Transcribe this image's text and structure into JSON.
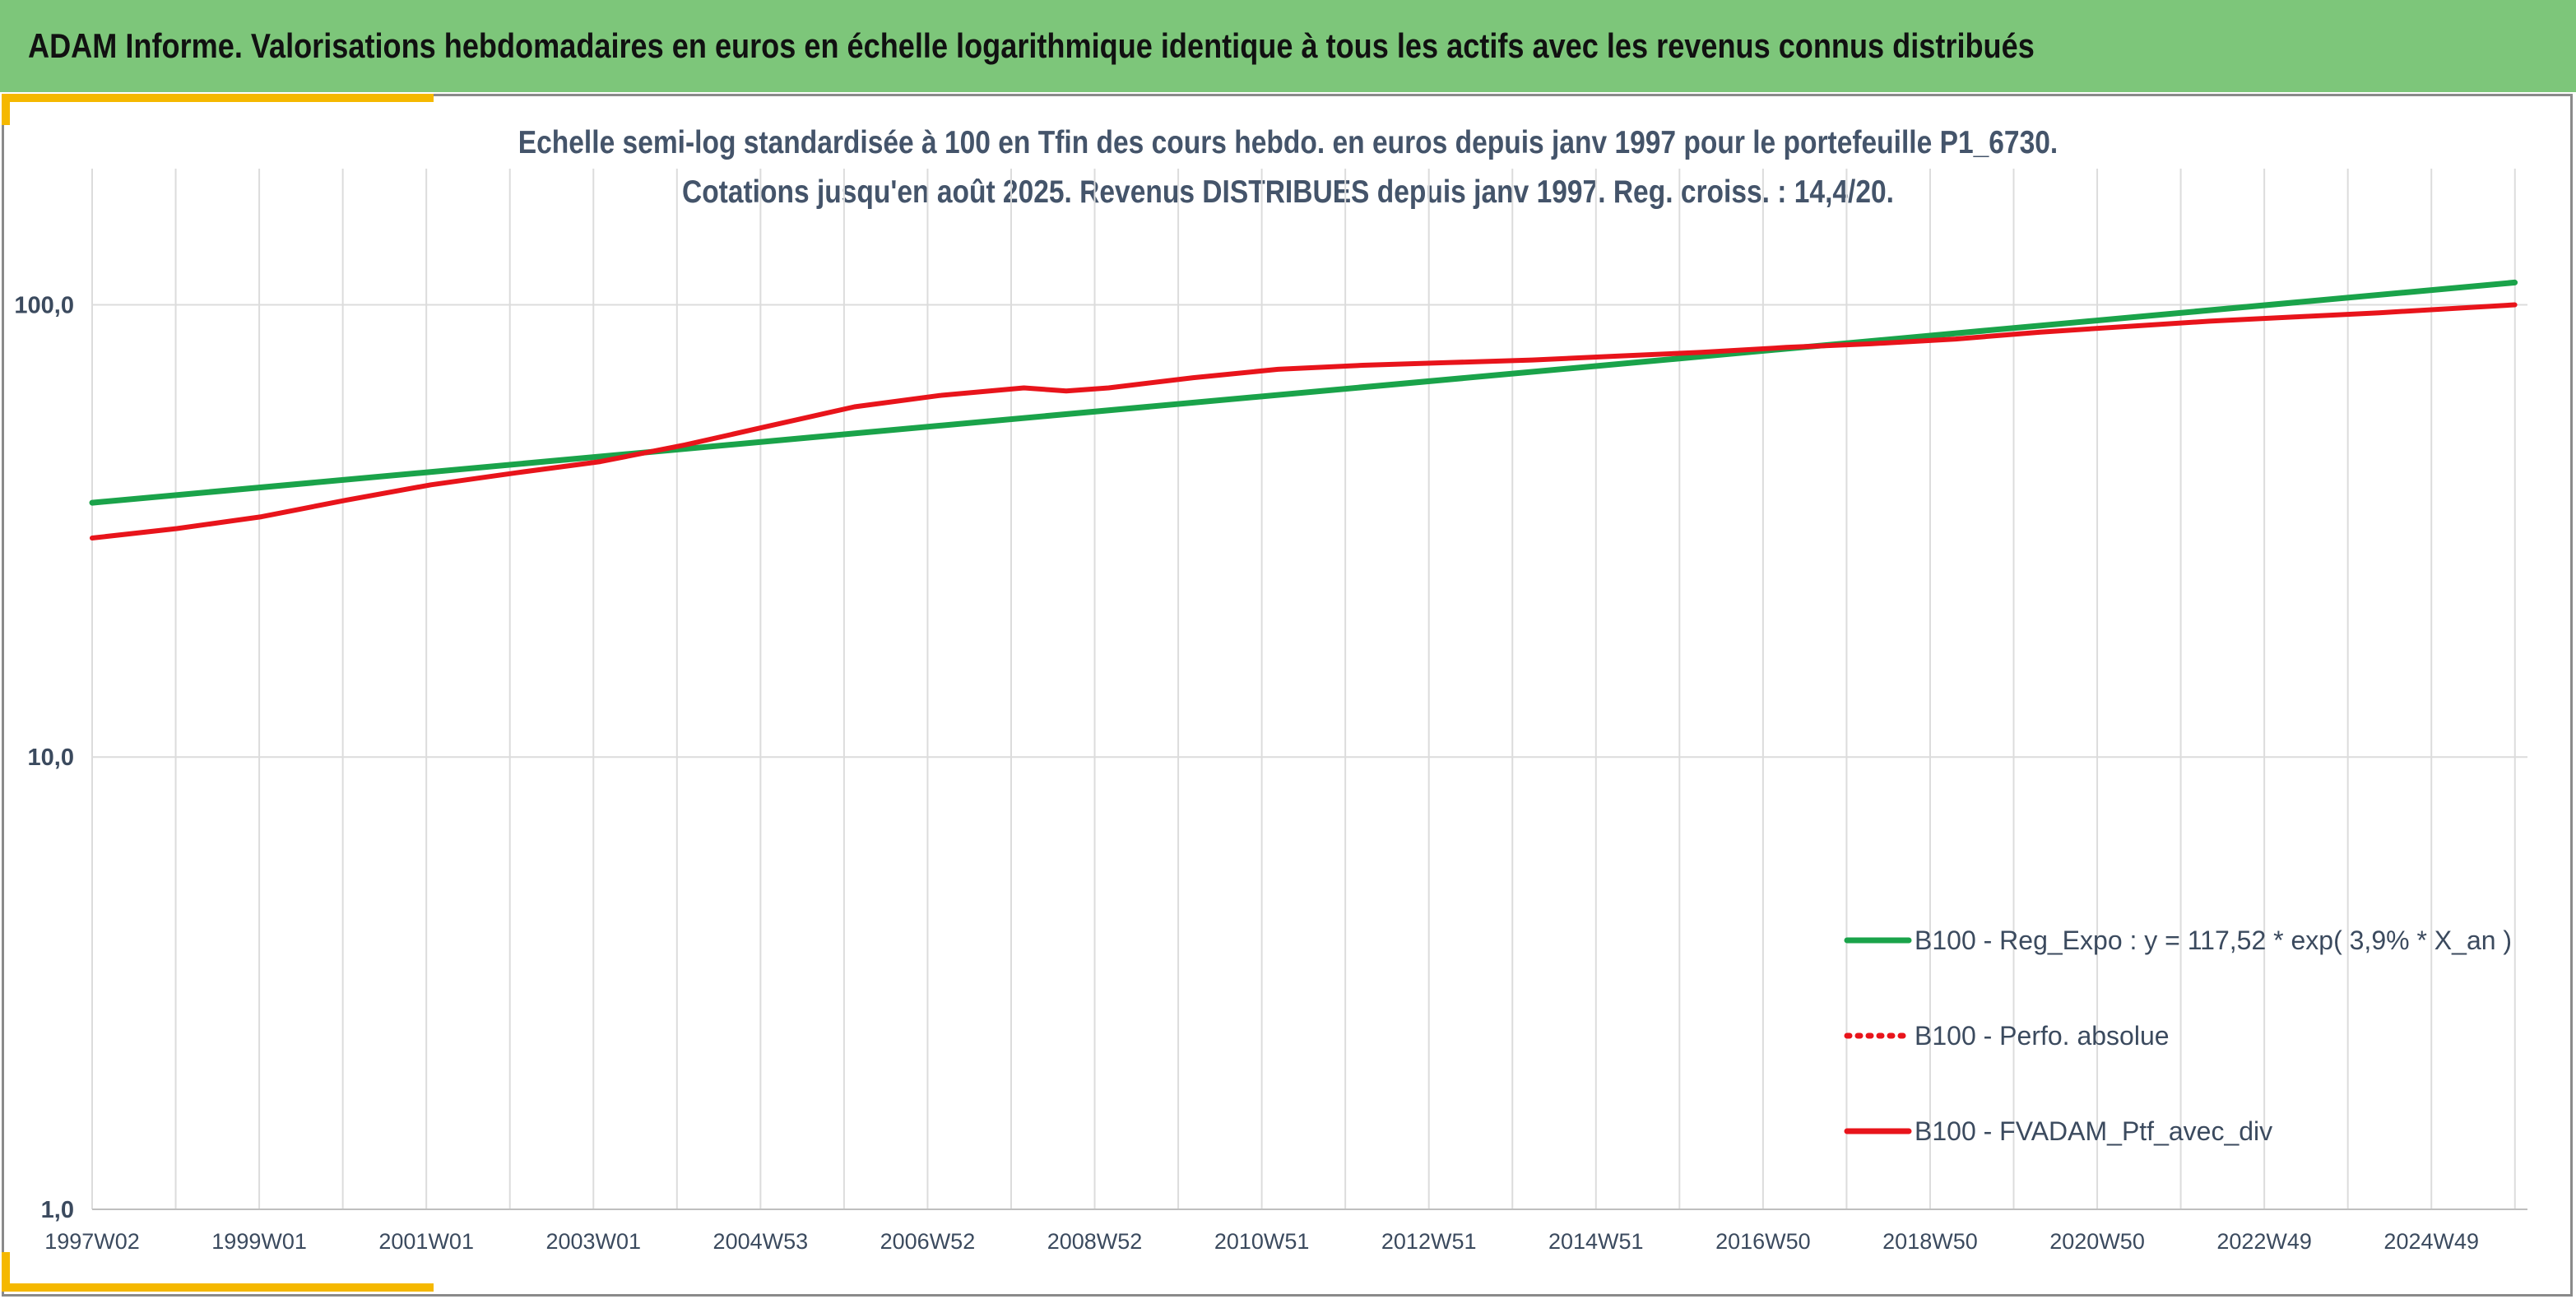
{
  "banner": {
    "title": "ADAM Informe. Valorisations hebdomadaires en euros en échelle logarithmique identique à tous les actifs avec les revenus connus distribués",
    "color": "#7dc67a"
  },
  "accent_color": "#f5b800",
  "chart_data": {
    "type": "line",
    "title_line1": "Echelle semi-log standardisée à 100 en Tfin des cours hebdo. en euros depuis janv 1997 pour le portefeuille P1_6730.",
    "title_line2": "Cotations jusqu'en août 2025. Revenus DISTRIBUES depuis janv 1997. Reg. croiss. : 14,4/20.",
    "y_scale": "log",
    "ylim": [
      1,
      200
    ],
    "y_ticks": [
      {
        "value": 1,
        "label": "1,0"
      },
      {
        "value": 10,
        "label": "10,0"
      },
      {
        "value": 100,
        "label": "100,0"
      }
    ],
    "xlim": [
      1997.0,
      2025.75
    ],
    "x_tick_labels": [
      "1997W02",
      "1999W01",
      "2001W01",
      "2003W01",
      "2004W53",
      "2006W52",
      "2008W52",
      "2010W51",
      "2012W51",
      "2014W51",
      "2016W50",
      "2018W50",
      "2020W50",
      "2022W49",
      "2024W49"
    ],
    "grid": true,
    "legend_position": "lower-right",
    "series": [
      {
        "name": "B100 - Reg_Expo : y = 117,52 * exp( 3,9% *  X_an )",
        "color": "#1aa34a",
        "style": "solid",
        "x": [
          1997.0,
          2025.6
        ],
        "y": [
          36.5,
          112.0
        ]
      },
      {
        "name": "B100 - Perfo. absolue",
        "color": "#e8141b",
        "style": "dotted",
        "x": [],
        "y": []
      },
      {
        "name": "B100 - FVADAM_Ptf_avec_div",
        "color": "#e8141b",
        "style": "solid",
        "x": [
          1997.0,
          1998.0,
          1999.0,
          2000.0,
          2001.0,
          2002.0,
          2003.0,
          2004.0,
          2005.0,
          2006.0,
          2007.0,
          2008.0,
          2008.5,
          2009.0,
          2010.0,
          2011.0,
          2012.0,
          2013.0,
          2014.0,
          2015.0,
          2016.0,
          2017.0,
          2018.0,
          2019.0,
          2020.0,
          2021.0,
          2022.0,
          2023.0,
          2024.0,
          2025.6
        ],
        "y": [
          30.5,
          32.0,
          34.0,
          37.0,
          40.0,
          42.5,
          45.0,
          49.0,
          54.0,
          59.5,
          63.0,
          65.5,
          64.5,
          65.5,
          69.0,
          72.0,
          73.5,
          74.5,
          75.5,
          77.0,
          78.5,
          80.5,
          82.0,
          84.0,
          87.0,
          89.5,
          92.0,
          94.0,
          96.0,
          100.0
        ]
      }
    ]
  }
}
